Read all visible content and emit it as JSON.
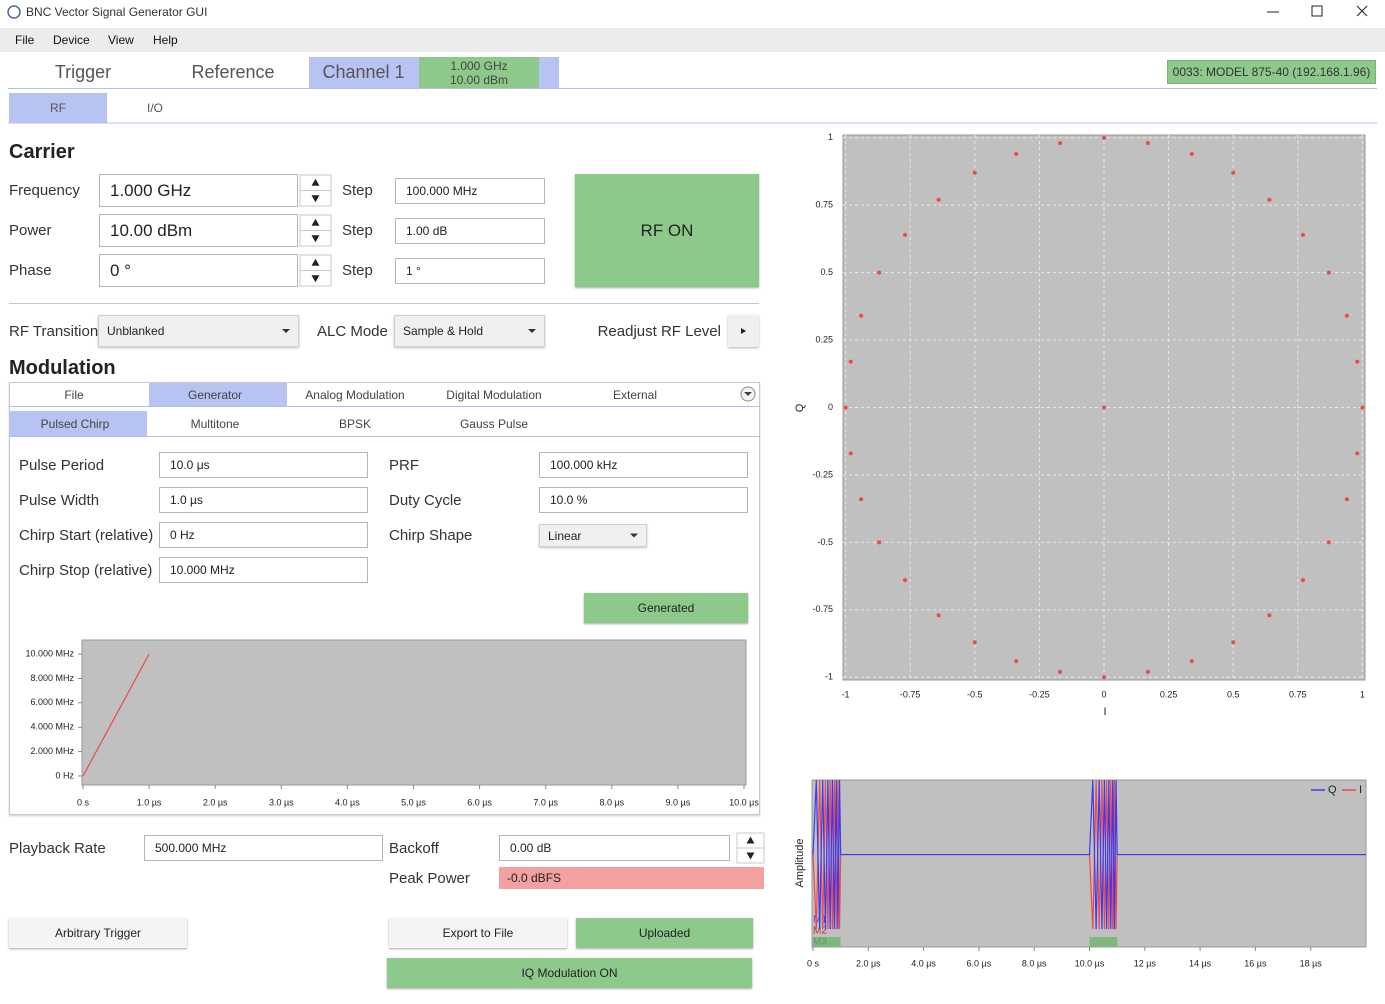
{
  "window": {
    "title": "BNC Vector Signal Generator GUI"
  },
  "menu": [
    "File",
    "Device",
    "View",
    "Help"
  ],
  "tabs": [
    "Trigger",
    "Reference",
    "Channel 1"
  ],
  "channel_badge": {
    "frequency": "1.000 GHz",
    "power": "10.00 dBm"
  },
  "device": "0033: MODEL 875-40 (192.168.1.96)",
  "subtabs": [
    "RF",
    "I/O"
  ],
  "carrier": {
    "title": "Carrier",
    "rows": [
      {
        "label": "Frequency",
        "value": "1.000 GHz",
        "step_label": "Step",
        "step": "100.000 MHz"
      },
      {
        "label": "Power",
        "value": "10.00 dBm",
        "step_label": "Step",
        "step": "1.00 dB"
      },
      {
        "label": "Phase",
        "value": "0 °",
        "step_label": "Step",
        "step": "1 °"
      }
    ],
    "rf_button": "RF ON"
  },
  "rf_transition": {
    "label": "RF Transition",
    "value": "Unblanked"
  },
  "alc_mode": {
    "label": "ALC Mode",
    "value": "Sample & Hold"
  },
  "readjust": "Readjust RF Level",
  "modulation": {
    "title": "Modulation",
    "tabs": [
      "File",
      "Generator",
      "Analog Modulation",
      "Digital Modulation",
      "External"
    ],
    "generator_tabs": [
      "Pulsed Chirp",
      "Multitone",
      "BPSK",
      "Gauss Pulse"
    ],
    "left_fields": [
      {
        "label": "Pulse Period",
        "value": "10.0 μs"
      },
      {
        "label": "Pulse Width",
        "value": "1.0 µs"
      },
      {
        "label": "Chirp Start (relative)",
        "value": "0 Hz"
      },
      {
        "label": "Chirp Stop (relative)",
        "value": "10.000 MHz"
      }
    ],
    "right_fields": [
      {
        "label": "PRF",
        "value": "100.000 kHz"
      },
      {
        "label": "Duty Cycle",
        "value": "10.0 %"
      },
      {
        "label": "Chirp Shape",
        "value": "Linear"
      }
    ],
    "generated_button": "Generated"
  },
  "chirp_chart": {
    "xlim": [
      0,
      10
    ],
    "ylim": [
      -0.74,
      11.15
    ],
    "xticks": [
      {
        "value": 0,
        "label": "0 s"
      },
      {
        "value": 1,
        "label": "1.0 µs"
      },
      {
        "value": 2,
        "label": "2.0 µs"
      },
      {
        "value": 3,
        "label": "3.0 µs"
      },
      {
        "value": 4,
        "label": "4.0 µs"
      },
      {
        "value": 5,
        "label": "5.0 µs"
      },
      {
        "value": 6,
        "label": "6.0 µs"
      },
      {
        "value": 7,
        "label": "7.0 µs"
      },
      {
        "value": 8,
        "label": "8.0 µs"
      },
      {
        "value": 9,
        "label": "9.0 µs"
      },
      {
        "value": 10,
        "label": "10.0 µs"
      }
    ],
    "yticks": [
      {
        "value": 0,
        "label": "0 Hz"
      },
      {
        "value": 2,
        "label": "2.000 MHz"
      },
      {
        "value": 4,
        "label": "4.000 MHz"
      },
      {
        "value": 6,
        "label": "6.000 MHz"
      },
      {
        "value": 8,
        "label": "8.000 MHz"
      },
      {
        "value": 10,
        "label": "10.000 MHz"
      }
    ],
    "x": [
      0,
      1
    ],
    "series": [
      {
        "color": "#f04848",
        "values": [
          0,
          10
        ]
      }
    ]
  },
  "playback_rate": {
    "label": "Playback Rate",
    "value": "500.000 MHz"
  },
  "backoff": {
    "label": "Backoff",
    "value": "0.00 dB"
  },
  "peak_power": {
    "label": "Peak Power",
    "value": "-0.0 dBFS"
  },
  "buttons": {
    "arbitrary_trigger": "Arbitrary Trigger",
    "export": "Export to File",
    "uploaded": "Uploaded",
    "iq_modulation": "IQ Modulation ON"
  },
  "constellation": {
    "x_label": "I",
    "y_label": "Q",
    "grid": true,
    "color": "#f04848",
    "xlim": [
      -1.01,
      1.01
    ],
    "ylim": [
      -1.01,
      1.01
    ],
    "xticks": [
      -1,
      -0.75,
      -0.5,
      -0.25,
      0,
      0.25,
      0.5,
      0.75,
      1
    ],
    "yticks": [
      -1,
      -0.75,
      -0.5,
      -0.25,
      0,
      0.25,
      0.5,
      0.75,
      1
    ],
    "points": {
      "x": [
        1,
        0.98,
        0.94,
        0.87,
        0.77,
        0.64,
        0.5,
        0.34,
        0.17,
        0,
        -0.17,
        -0.34,
        -0.5,
        -0.64,
        -0.77,
        -0.87,
        -0.94,
        -0.98,
        -1,
        -0.98,
        -0.94,
        -0.87,
        -0.77,
        -0.64,
        -0.5,
        -0.34,
        -0.17,
        0,
        0.17,
        0.34,
        0.5,
        0.64,
        0.77,
        0.87,
        0.94,
        0.98,
        0
      ],
      "y": [
        0,
        0.17,
        0.34,
        0.5,
        0.64,
        0.77,
        0.87,
        0.94,
        0.98,
        1,
        0.98,
        0.94,
        0.87,
        0.77,
        0.64,
        0.5,
        0.34,
        0.17,
        0,
        -0.17,
        -0.34,
        -0.5,
        -0.64,
        -0.77,
        -0.87,
        -0.94,
        -0.98,
        -1,
        -0.98,
        -0.94,
        -0.87,
        -0.77,
        -0.64,
        -0.5,
        -0.34,
        -0.17,
        0
      ]
    }
  },
  "time_plot": {
    "y_label": "Amplitude",
    "xlim": [
      0,
      20
    ],
    "ylim": [
      -1.24,
      1
    ],
    "xticks": [
      {
        "value": 0,
        "label": "0 s"
      },
      {
        "value": 2,
        "label": "2.0 µs"
      },
      {
        "value": 4,
        "label": "4.0 µs"
      },
      {
        "value": 6,
        "label": "6.0 µs"
      },
      {
        "value": 8,
        "label": "8.0 µs"
      },
      {
        "value": 10,
        "label": "10.0 µs"
      },
      {
        "value": 12,
        "label": "12 µs"
      },
      {
        "value": 14,
        "label": "14 µs"
      },
      {
        "value": 16,
        "label": "16 µs"
      },
      {
        "value": 18,
        "label": "18 µs"
      }
    ],
    "x": [
      0,
      0.12,
      0.24,
      0.35,
      0.45,
      0.54,
      0.62,
      0.7,
      0.77,
      0.84,
      0.9,
      0.96,
      1,
      10,
      10.12,
      10.24,
      10.35,
      10.45,
      10.54,
      10.62,
      10.7,
      10.77,
      10.84,
      10.9,
      10.96,
      11,
      20
    ],
    "series": [
      {
        "name": "Q",
        "color": "#3a3af0",
        "values": [
          0,
          1,
          -1,
          1,
          -1,
          1,
          -1,
          1,
          -1,
          1,
          -1,
          1,
          0,
          0,
          1,
          -1,
          1,
          -1,
          1,
          -1,
          1,
          -1,
          1,
          -1,
          1,
          0,
          0
        ]
      },
      {
        "name": "I",
        "color": "#f04848",
        "values": [
          0,
          -1,
          1,
          -1,
          1,
          -1,
          1,
          -1,
          1,
          -1,
          1,
          -1,
          0,
          0,
          -1,
          1,
          -1,
          1,
          -1,
          1,
          -1,
          1,
          -1,
          1,
          -1,
          0,
          0
        ]
      }
    ],
    "markers": {
      "labels": [
        "M1",
        "M2",
        "M3"
      ],
      "colors": [
        "#3a3af0",
        "#c03030",
        "#5a9a5a"
      ],
      "m3_spans": [
        [
          0,
          1
        ],
        [
          10,
          11
        ]
      ],
      "m3_color": "#7fb77f"
    }
  }
}
